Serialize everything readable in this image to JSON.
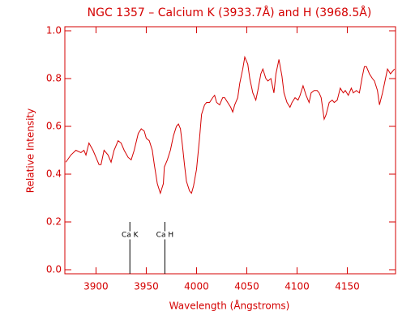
{
  "chart_data": {
    "type": "line",
    "title": "NGC 1357 – Calcium K (3933.7Å) and H (3968.5Å)",
    "x_label": "Wavelength (Ångstroms)",
    "y_label": "Relative Intensity",
    "color": "#d40000",
    "xlim": [
      3869,
      4198
    ],
    "ylim": [
      -0.017,
      1.017
    ],
    "xticks": [
      3900,
      3950,
      4000,
      4050,
      4100,
      4150
    ],
    "yticks": [
      {
        "value": 0,
        "label": "0.0"
      },
      0.2,
      0.4,
      0.6,
      0.8,
      {
        "value": 1,
        "label": "1.0"
      }
    ],
    "annotations": [
      {
        "text": "Ca K",
        "x": 3933.7,
        "y": 0.2
      },
      {
        "text": "Ca H",
        "x": 3968.5,
        "y": 0.2
      }
    ],
    "x": [
      3870,
      3875,
      3880,
      3885,
      3888,
      3890,
      3893,
      3897,
      3900,
      3903,
      3905,
      3908,
      3912,
      3915,
      3918,
      3922,
      3925,
      3928,
      3932,
      3935,
      3938,
      3942,
      3945,
      3948,
      3950,
      3953,
      3956,
      3958,
      3961,
      3964,
      3967,
      3968,
      3971,
      3974,
      3977,
      3980,
      3982,
      3984,
      3986,
      3988,
      3990,
      3993,
      3995,
      3997,
      4000,
      4003,
      4005,
      4008,
      4010,
      4013,
      4016,
      4018,
      4020,
      4023,
      4026,
      4028,
      4031,
      4034,
      4036,
      4038,
      4041,
      4043,
      4046,
      4048,
      4051,
      4053,
      4056,
      4059,
      4061,
      4064,
      4066,
      4069,
      4071,
      4074,
      4077,
      4079,
      4082,
      4085,
      4087,
      4090,
      4093,
      4095,
      4098,
      4101,
      4103,
      4106,
      4109,
      4112,
      4114,
      4117,
      4120,
      4122,
      4124,
      4127,
      4129,
      4132,
      4135,
      4137,
      4140,
      4143,
      4146,
      4148,
      4151,
      4154,
      4156,
      4159,
      4162,
      4165,
      4167,
      4169,
      4172,
      4175,
      4177,
      4180,
      4182,
      4185,
      4188,
      4190,
      4193,
      4197
    ],
    "values": [
      0.45,
      0.48,
      0.5,
      0.49,
      0.5,
      0.48,
      0.53,
      0.5,
      0.47,
      0.44,
      0.44,
      0.5,
      0.48,
      0.45,
      0.5,
      0.54,
      0.53,
      0.5,
      0.47,
      0.46,
      0.5,
      0.57,
      0.59,
      0.58,
      0.55,
      0.54,
      0.5,
      0.44,
      0.36,
      0.32,
      0.36,
      0.43,
      0.46,
      0.5,
      0.56,
      0.6,
      0.61,
      0.59,
      0.52,
      0.44,
      0.37,
      0.33,
      0.32,
      0.35,
      0.42,
      0.55,
      0.65,
      0.69,
      0.7,
      0.7,
      0.72,
      0.73,
      0.7,
      0.69,
      0.72,
      0.72,
      0.7,
      0.68,
      0.66,
      0.69,
      0.72,
      0.78,
      0.84,
      0.89,
      0.86,
      0.8,
      0.74,
      0.71,
      0.75,
      0.82,
      0.84,
      0.8,
      0.79,
      0.8,
      0.74,
      0.82,
      0.88,
      0.81,
      0.74,
      0.7,
      0.68,
      0.7,
      0.72,
      0.71,
      0.73,
      0.77,
      0.73,
      0.7,
      0.74,
      0.75,
      0.75,
      0.74,
      0.72,
      0.63,
      0.65,
      0.7,
      0.71,
      0.7,
      0.71,
      0.76,
      0.74,
      0.75,
      0.73,
      0.76,
      0.74,
      0.75,
      0.74,
      0.81,
      0.85,
      0.85,
      0.82,
      0.8,
      0.79,
      0.75,
      0.69,
      0.74,
      0.8,
      0.84,
      0.82,
      0.84
    ]
  }
}
